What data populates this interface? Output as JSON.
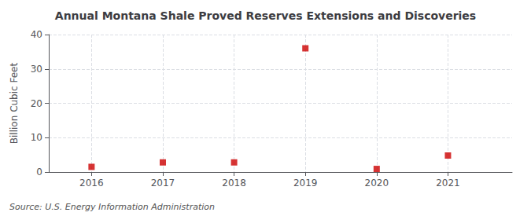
{
  "chart_data": {
    "type": "scatter",
    "title": "Annual Montana Shale Proved Reserves Extensions and Discoveries",
    "ylabel": "Billion Cubic Feet",
    "annotations": [
      "Source: U.S. Energy Information Administration"
    ],
    "x": [
      2016,
      2017,
      2018,
      2019,
      2020,
      2021
    ],
    "values": [
      1.5,
      2.8,
      2.8,
      36.0,
      0.9,
      4.8
    ],
    "color": "#cc0000",
    "marker": "square",
    "xlim": [
      2015.4,
      2021.9
    ],
    "xticks": [
      2016,
      2017,
      2018,
      2019,
      2020,
      2021
    ],
    "ylim": [
      0,
      40
    ],
    "yticks": [
      0,
      10,
      20,
      30,
      40
    ],
    "grid": true
  }
}
